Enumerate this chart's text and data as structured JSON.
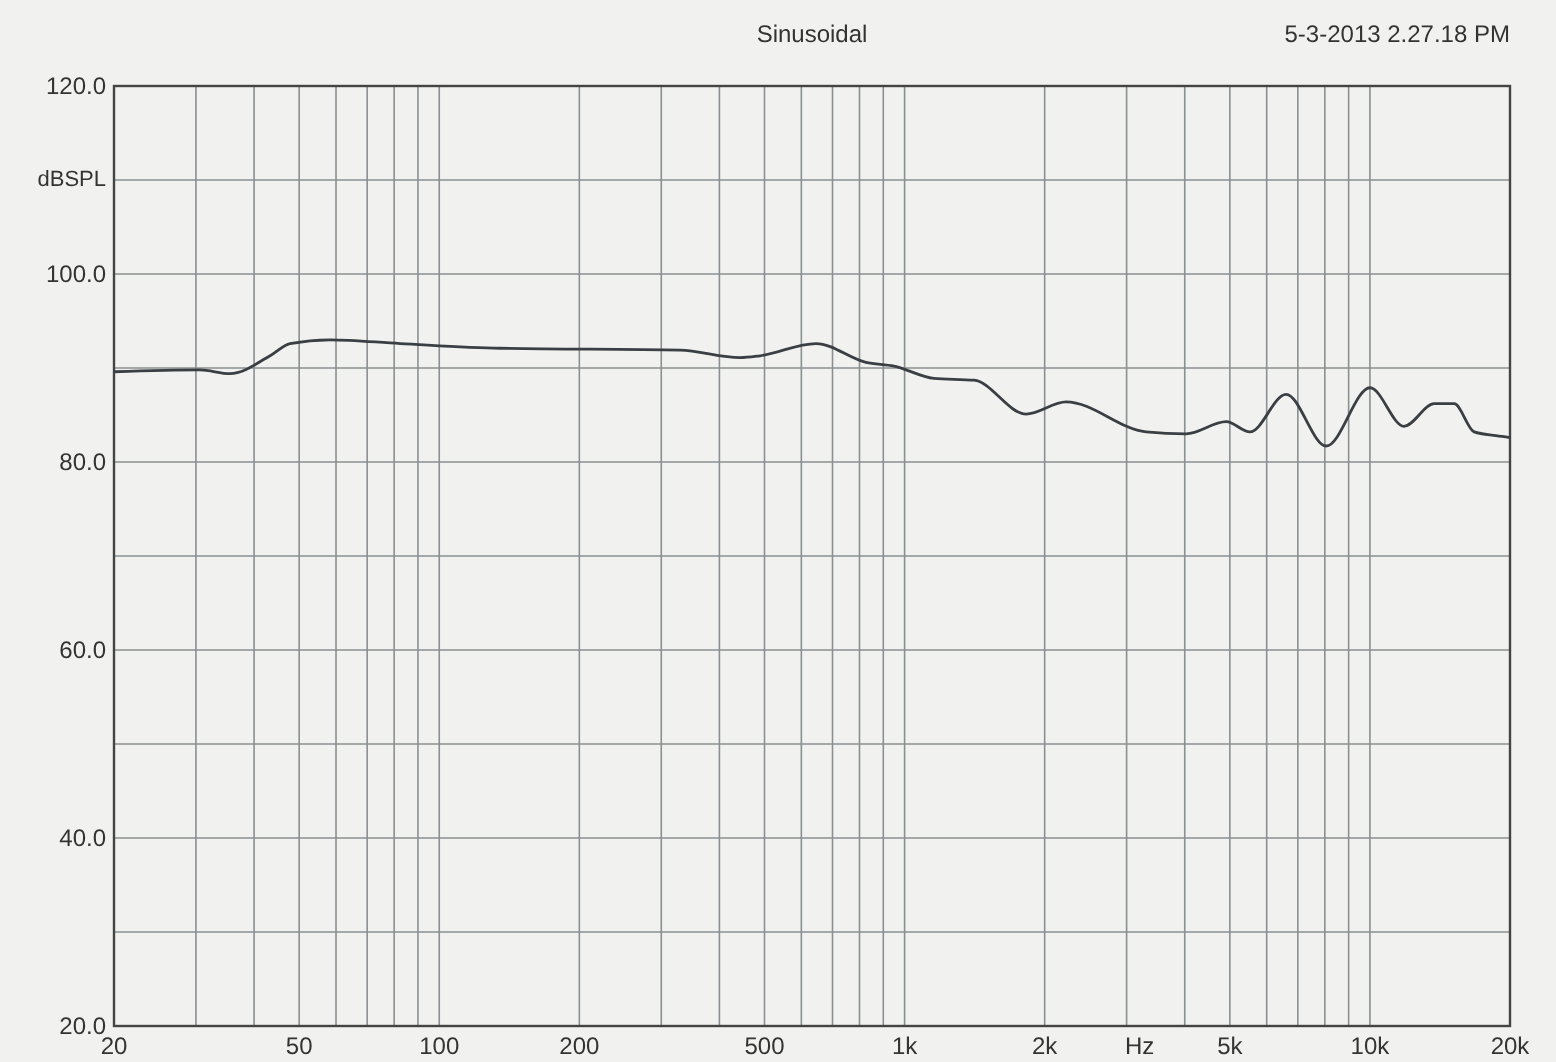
{
  "chart_data": {
    "type": "line",
    "title": "Sinusoidal",
    "xlabel": "Hz",
    "ylabel": "dBSPL",
    "annotations": [
      "5-3-2013 2.27.18 PM"
    ],
    "log": "x",
    "grid": true,
    "marker": "none",
    "line_style": "solid",
    "xlim": [
      20,
      20000
    ],
    "ylim": [
      20,
      120
    ],
    "xticks": [
      20,
      {
        "value": 30,
        "label": null
      },
      {
        "value": 40,
        "label": null
      },
      50,
      {
        "value": 60,
        "label": null
      },
      {
        "value": 70,
        "label": null
      },
      {
        "value": 80,
        "label": null
      },
      {
        "value": 90,
        "label": null
      },
      100,
      200,
      {
        "value": 300,
        "label": null
      },
      {
        "value": 400,
        "label": null
      },
      500,
      {
        "value": 600,
        "label": null
      },
      {
        "value": 700,
        "label": null
      },
      {
        "value": 800,
        "label": null
      },
      {
        "value": 900,
        "label": null
      },
      {
        "value": 1000,
        "label": "1k"
      },
      {
        "value": 2000,
        "label": "2k"
      },
      {
        "value": 3000,
        "label": null
      },
      {
        "value": 4000,
        "label": null
      },
      {
        "value": 5000,
        "label": "5k"
      },
      {
        "value": 6000,
        "label": null
      },
      {
        "value": 7000,
        "label": null
      },
      {
        "value": 8000,
        "label": null
      },
      {
        "value": 9000,
        "label": null
      },
      {
        "value": 10000,
        "label": "10k"
      },
      {
        "value": 20000,
        "label": "20k"
      }
    ],
    "yticks": [
      {
        "value": 20,
        "label": "20.0"
      },
      {
        "value": 30,
        "label": null
      },
      {
        "value": 40,
        "label": "40.0"
      },
      {
        "value": 50,
        "label": null
      },
      {
        "value": 60,
        "label": "60.0"
      },
      {
        "value": 70,
        "label": null
      },
      {
        "value": 80,
        "label": "80.0"
      },
      {
        "value": 90,
        "label": null
      },
      {
        "value": 100,
        "label": "100.0"
      },
      {
        "value": 110,
        "label": null
      },
      {
        "value": 120,
        "label": "120.0"
      }
    ],
    "series": [
      {
        "color": "#3a3f44",
        "x": [
          20,
          30.6,
          35.5,
          43.3,
          47.8,
          58.2,
          82.4,
          135,
          329,
          443,
          489,
          645,
          826,
          949,
          1156,
          1410,
          1824,
          2223,
          3304,
          4027,
          4909,
          5522,
          6606,
          8053,
          10005,
          11836,
          13738,
          15170,
          16750,
          18670,
          20000
        ],
        "values": [
          89.6,
          89.8,
          89.4,
          91.3,
          92.6,
          93.0,
          92.6,
          92.1,
          91.9,
          91.1,
          91.3,
          92.6,
          90.6,
          90.2,
          88.9,
          88.7,
          85.1,
          86.4,
          83.2,
          83.0,
          84.3,
          83.2,
          87.2,
          81.7,
          87.9,
          83.8,
          86.2,
          86.2,
          83.2,
          82.8,
          82.6
        ]
      }
    ]
  }
}
